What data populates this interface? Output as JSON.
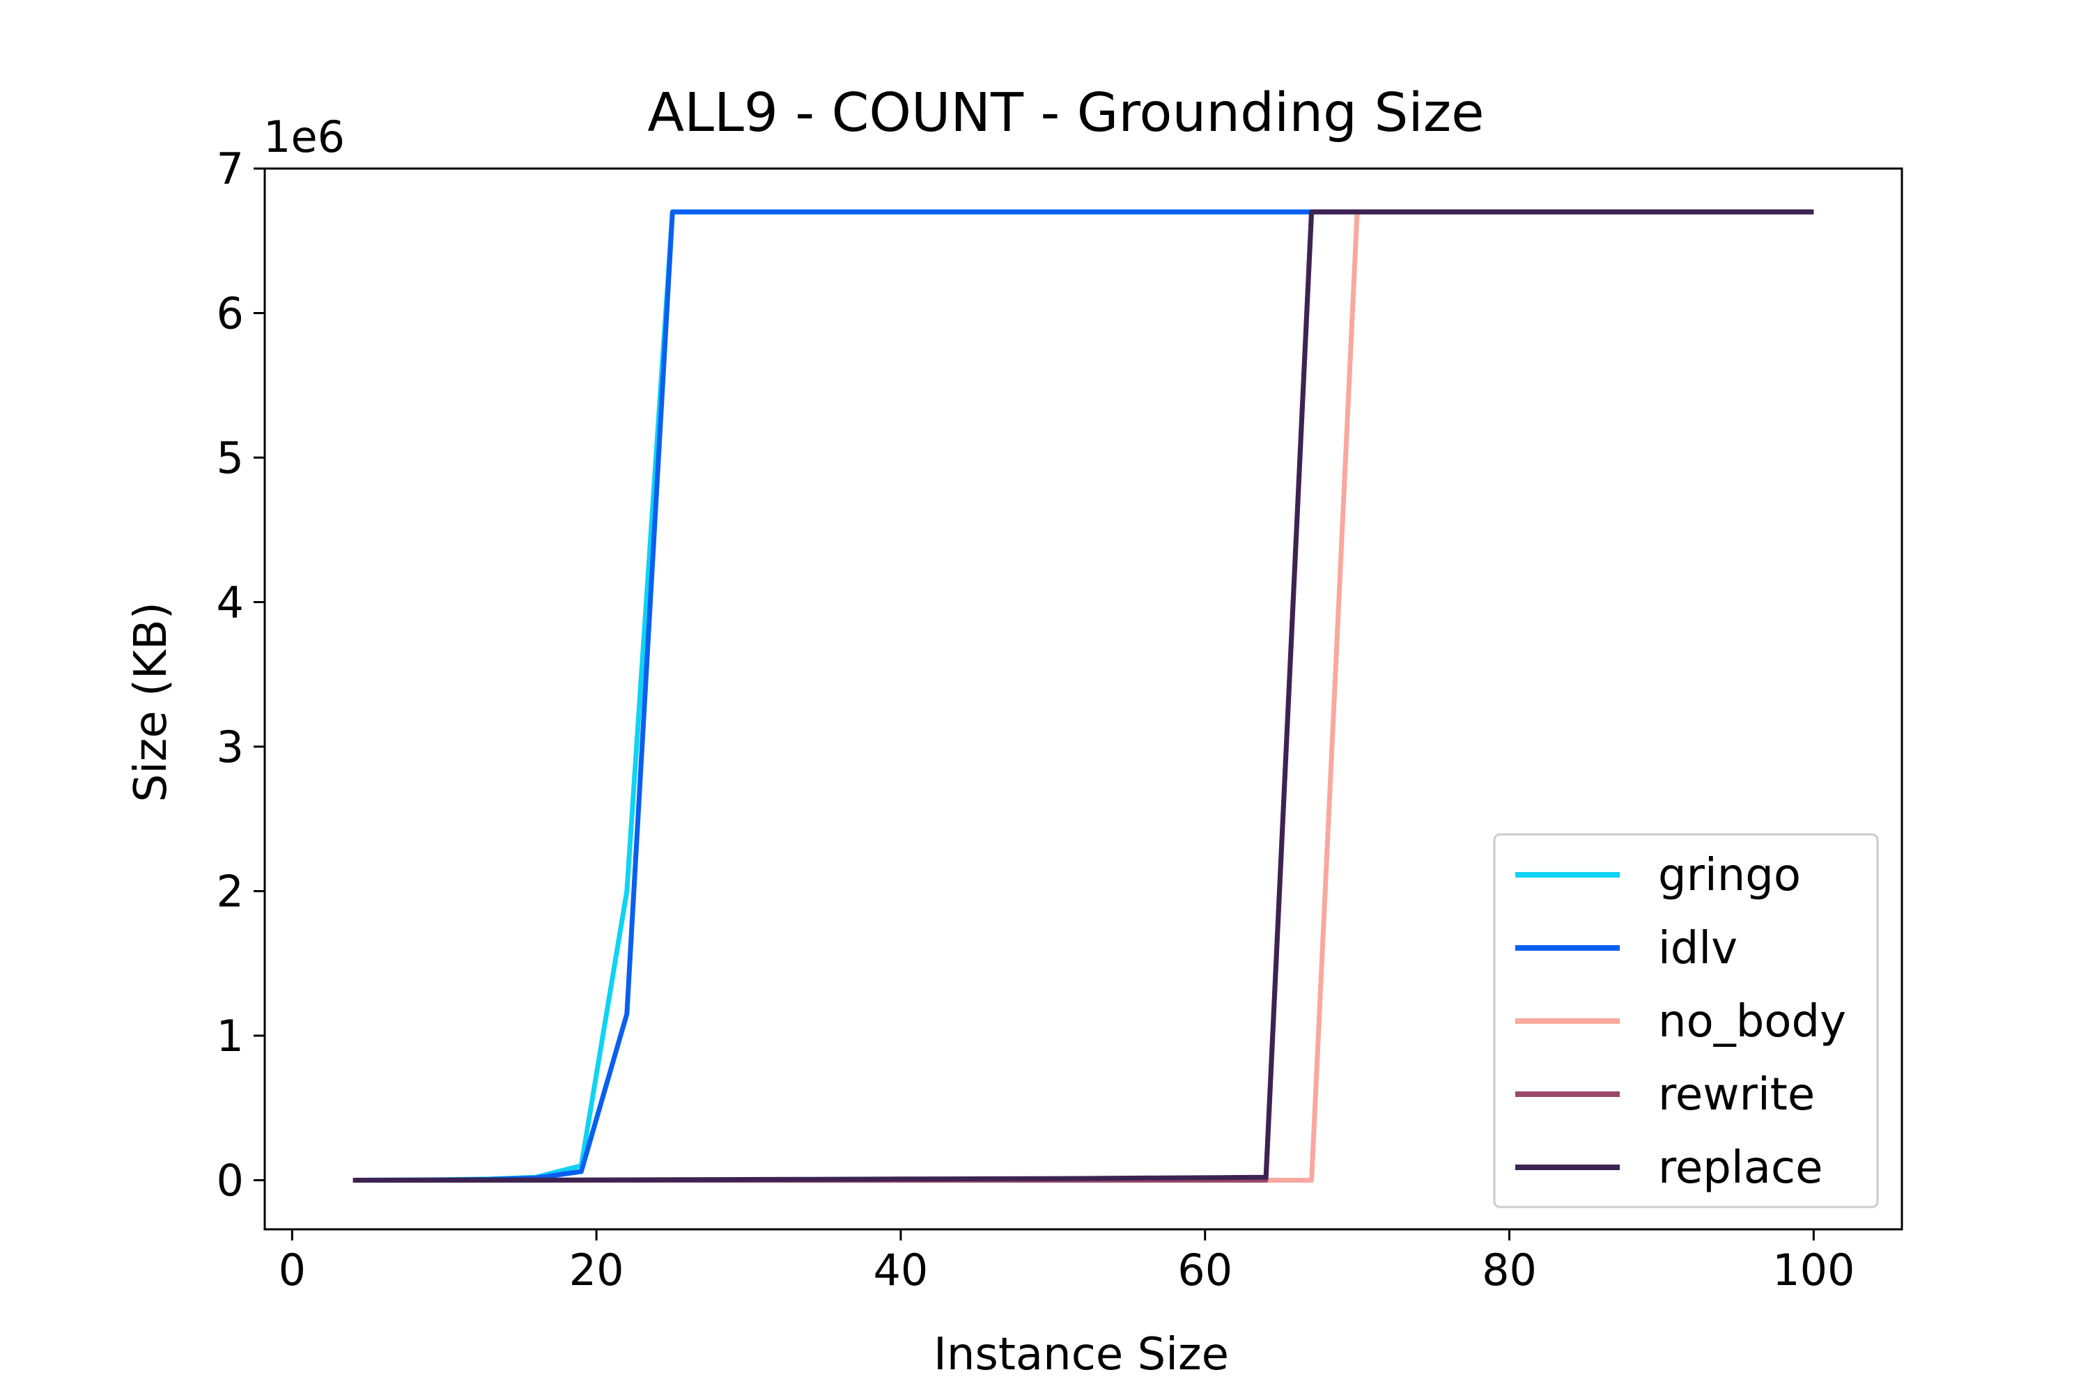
{
  "chart_data": {
    "type": "line",
    "title": "ALL9 - COUNT - Grounding Size",
    "xlabel": "Instance Size",
    "ylabel": "Size (KB)",
    "y_multiplier_label": "1e6",
    "y_multiplier": 1000000,
    "xlim": [
      -1.8,
      105.8
    ],
    "ylim": [
      -340000,
      7000000
    ],
    "xticks": [
      0,
      20,
      40,
      60,
      80,
      100
    ],
    "xtick_labels": [
      "0",
      "20",
      "40",
      "60",
      "80",
      "100"
    ],
    "yticks": [
      0,
      1000000,
      2000000,
      3000000,
      4000000,
      5000000,
      6000000,
      7000000
    ],
    "ytick_labels": [
      "0",
      "1",
      "2",
      "3",
      "4",
      "5",
      "6",
      "7"
    ],
    "grid": false,
    "legend_position": "lower-right",
    "series": [
      {
        "name": "gringo",
        "color": "#0fd3f2",
        "x": [
          4,
          7,
          10,
          13,
          16,
          19,
          22,
          25,
          28,
          31,
          34,
          37,
          40,
          43,
          46,
          49,
          52,
          55,
          58,
          61,
          64,
          67,
          70,
          73,
          76,
          79,
          82,
          85,
          88,
          91,
          94,
          97,
          100
        ],
        "y": [
          0,
          1000,
          3000,
          8000,
          20000,
          100000,
          2000000,
          6700000,
          6700000,
          6700000,
          6700000,
          6700000,
          6700000,
          6700000,
          6700000,
          6700000,
          6700000,
          6700000,
          6700000,
          6700000,
          6700000,
          6700000,
          6700000,
          6700000,
          6700000,
          6700000,
          6700000,
          6700000,
          6700000,
          6700000,
          6700000,
          6700000,
          6700000
        ]
      },
      {
        "name": "idlv",
        "color": "#0a5ff0",
        "x": [
          4,
          7,
          10,
          13,
          16,
          19,
          22,
          25,
          28,
          31,
          34,
          37,
          40,
          43,
          46,
          49,
          52,
          55,
          58,
          61,
          64,
          67,
          70,
          73,
          76,
          79,
          82,
          85,
          88,
          91,
          94,
          97,
          100
        ],
        "y": [
          0,
          500,
          2000,
          5000,
          15000,
          60000,
          1150000,
          6700000,
          6700000,
          6700000,
          6700000,
          6700000,
          6700000,
          6700000,
          6700000,
          6700000,
          6700000,
          6700000,
          6700000,
          6700000,
          6700000,
          6700000,
          6700000,
          6700000,
          6700000,
          6700000,
          6700000,
          6700000,
          6700000,
          6700000,
          6700000,
          6700000,
          6700000
        ]
      },
      {
        "name": "no_body",
        "color": "#f9a89f",
        "x": [
          4,
          7,
          10,
          13,
          16,
          19,
          22,
          25,
          28,
          31,
          34,
          37,
          40,
          43,
          46,
          49,
          52,
          55,
          58,
          61,
          64,
          67,
          70,
          73,
          76,
          79,
          82,
          85,
          88,
          91,
          94,
          97,
          100
        ],
        "y": [
          0,
          0,
          0,
          0,
          0,
          0,
          0,
          0,
          0,
          0,
          0,
          0,
          0,
          0,
          0,
          0,
          0,
          0,
          0,
          0,
          0,
          0,
          6700000,
          6700000,
          6700000,
          6700000,
          6700000,
          6700000,
          6700000,
          6700000,
          6700000,
          6700000,
          6700000
        ]
      },
      {
        "name": "rewrite",
        "color": "#9a4a6a",
        "x": [
          4,
          7,
          10,
          13,
          16,
          19,
          22,
          25,
          28,
          31,
          34,
          37,
          40,
          43,
          46,
          49,
          52,
          55,
          58,
          61,
          64,
          67,
          70,
          73,
          76,
          79,
          82,
          85,
          88,
          91,
          94,
          97,
          100
        ],
        "y": [
          0,
          0,
          0,
          0,
          0,
          0,
          0,
          0,
          0,
          0,
          0,
          0,
          0,
          0,
          0,
          0,
          0,
          0,
          0,
          0,
          0,
          6700000,
          6700000,
          6700000,
          6700000,
          6700000,
          6700000,
          6700000,
          6700000,
          6700000,
          6700000,
          6700000,
          6700000
        ]
      },
      {
        "name": "replace",
        "color": "#3d2352",
        "x": [
          4,
          7,
          10,
          13,
          16,
          19,
          22,
          25,
          28,
          31,
          34,
          37,
          40,
          43,
          46,
          49,
          52,
          55,
          58,
          61,
          64,
          67,
          70,
          73,
          76,
          79,
          82,
          85,
          88,
          91,
          94,
          97,
          100
        ],
        "y": [
          0,
          0,
          200,
          500,
          1000,
          1500,
          2000,
          3000,
          4000,
          5000,
          6000,
          7000,
          8000,
          9000,
          10000,
          11000,
          12000,
          14000,
          16000,
          18000,
          20000,
          6700000,
          6700000,
          6700000,
          6700000,
          6700000,
          6700000,
          6700000,
          6700000,
          6700000,
          6700000,
          6700000,
          6700000
        ]
      }
    ]
  }
}
